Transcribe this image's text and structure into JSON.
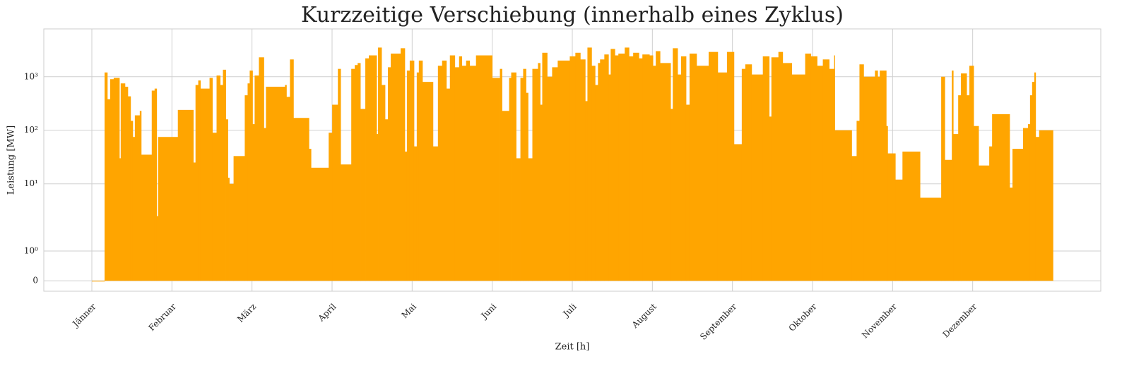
{
  "chart_data": {
    "type": "step-area",
    "title": "Kurzzeitige Verschiebung (innerhalb eines Zyklus)",
    "xlabel": "Zeit [h]",
    "ylabel": "Leistung [MW]",
    "color": "#ffa500",
    "grid": true,
    "yscale": "symlog",
    "linthresh": 2,
    "xlim": [
      -438,
      9198
    ],
    "ylim": [
      -0.35,
      7800
    ],
    "xticks": [
      {
        "value": 0,
        "label": "Jänner"
      },
      {
        "value": 730,
        "label": "Februar"
      },
      {
        "value": 1460,
        "label": "März"
      },
      {
        "value": 2190,
        "label": "April"
      },
      {
        "value": 2920,
        "label": "Mai"
      },
      {
        "value": 3650,
        "label": "Juni"
      },
      {
        "value": 4380,
        "label": "Juli"
      },
      {
        "value": 5110,
        "label": "August"
      },
      {
        "value": 5840,
        "label": "September"
      },
      {
        "value": 6570,
        "label": "Oktober"
      },
      {
        "value": 7300,
        "label": "November"
      },
      {
        "value": 8030,
        "label": "Dezember"
      }
    ],
    "yticks": [
      0,
      {
        "value": 1,
        "label": "10⁰"
      },
      {
        "value": 10,
        "label": "10¹"
      },
      {
        "value": 100,
        "label": "10²"
      },
      {
        "value": 1000,
        "label": "10³"
      }
    ],
    "x": [
      0,
      116,
      141,
      167,
      199,
      251,
      263,
      302,
      328,
      353,
      373,
      392,
      437,
      450,
      546,
      572,
      591,
      604,
      784,
      925,
      945,
      970,
      990,
      1073,
      1099,
      1137,
      1170,
      1195,
      1221,
      1240,
      1253,
      1292,
      1394,
      1420,
      1439,
      1465,
      1484,
      1523,
      1568,
      1587,
      1761,
      1774,
      1806,
      1838,
      1979,
      1998,
      2159,
      2191,
      2243,
      2268,
      2365,
      2397,
      2423,
      2448,
      2493,
      2525,
      2596,
      2609,
      2641,
      2673,
      2699,
      2725,
      2815,
      2853,
      2872,
      2898,
      2937,
      2962,
      2981,
      3014,
      3110,
      3155,
      3193,
      3232,
      3264,
      3309,
      3348,
      3373,
      3412,
      3444,
      3502,
      3650,
      3720,
      3739,
      3804,
      3823,
      3868,
      3907,
      3932,
      3958,
      3977,
      4016,
      4067,
      4087,
      4106,
      4151,
      4196,
      4247,
      4357,
      4408,
      4453,
      4498,
      4518,
      4556,
      4588,
      4614,
      4633,
      4672,
      4710,
      4730,
      4768,
      4800,
      4858,
      4897,
      4935,
      4987,
      5019,
      5083,
      5115,
      5141,
      5180,
      5276,
      5296,
      5340,
      5372,
      5417,
      5449,
      5513,
      5623,
      5706,
      5790,
      5854,
      5925,
      5957,
      6015,
      6117,
      6175,
      6195,
      6259,
      6298,
      6381,
      6503,
      6555,
      6612,
      6664,
      6722,
      6767,
      6773,
      6927,
      6972,
      6998,
      7036,
      7139,
      7164,
      7183,
      7242,
      7255,
      7325,
      7390,
      7550,
      7743,
      7776,
      7840,
      7853,
      7898,
      7923,
      7975,
      8000,
      8039,
      8084,
      8181,
      8207,
      8367,
      8393,
      8489,
      8534,
      8553,
      8572,
      8592,
      8604,
      8636,
      8759
    ],
    "values": [
      0,
      1200,
      380,
      900,
      950,
      30,
      750,
      650,
      430,
      150,
      75,
      190,
      230,
      35,
      550,
      600,
      2.5,
      75,
      240,
      25,
      700,
      850,
      600,
      950,
      90,
      1050,
      700,
      1350,
      160,
      13,
      10,
      33,
      450,
      750,
      1300,
      130,
      1050,
      2300,
      110,
      650,
      700,
      420,
      2100,
      170,
      45,
      20,
      90,
      300,
      1400,
      23,
      1400,
      1650,
      1800,
      250,
      2200,
      2500,
      85,
      3500,
      700,
      160,
      1500,
      2700,
      3400,
      40,
      1300,
      2000,
      50,
      1200,
      2000,
      800,
      50,
      1600,
      2000,
      600,
      2500,
      1500,
      2400,
      1600,
      2000,
      1600,
      2500,
      950,
      1400,
      230,
      950,
      1200,
      30,
      950,
      1400,
      500,
      30,
      1400,
      1800,
      300,
      2800,
      1000,
      1500,
      2000,
      2400,
      2800,
      2100,
      350,
      3500,
      1600,
      700,
      1800,
      2100,
      2600,
      1100,
      3300,
      2500,
      2700,
      3500,
      2400,
      2800,
      2200,
      2600,
      2500,
      1600,
      3000,
      1800,
      250,
      3400,
      1100,
      2400,
      300,
      2700,
      1600,
      2900,
      1200,
      2900,
      55,
      1400,
      1700,
      1100,
      2400,
      180,
      2300,
      2900,
      1800,
      1100,
      2700,
      2400,
      1600,
      2100,
      1400,
      2500,
      100,
      33,
      150,
      1700,
      1000,
      1300,
      1000,
      1300,
      120,
      37,
      12,
      40,
      5.5,
      1000,
      28,
      1300,
      85,
      450,
      1150,
      450,
      1600,
      120,
      22,
      50,
      200,
      8.5,
      45,
      110,
      130,
      450,
      800,
      1200,
      75,
      100,
      100
    ]
  }
}
